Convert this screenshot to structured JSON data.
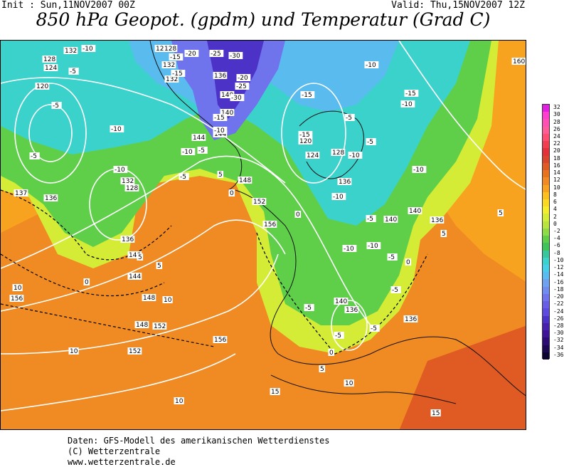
{
  "header": {
    "init": "Init : Sun,11NOV2007 00Z",
    "valid": "Valid: Thu,15NOV2007 12Z",
    "title": "850 hPa Geopot. (gpdm) und Temperatur (Grad C)"
  },
  "legend": {
    "labels": [
      "32",
      "30",
      "28",
      "26",
      "24",
      "22",
      "20",
      "18",
      "16",
      "14",
      "12",
      "10",
      "8",
      "6",
      "4",
      "2",
      "0",
      "-2",
      "-4",
      "-6",
      "-8",
      "-10",
      "-12",
      "-14",
      "-16",
      "-18",
      "-20",
      "-22",
      "-24",
      "-26",
      "-28",
      "-30",
      "-32",
      "-34",
      "-36"
    ],
    "colors": [
      "#e21ee0",
      "#ff3ed0",
      "#ff4fb4",
      "#ff5b96",
      "#ff4c73",
      "#f23c50",
      "#e3303a",
      "#d9442c",
      "#e05a23",
      "#e8721e",
      "#f08a22",
      "#f7a31f",
      "#fbbf1e",
      "#fbd923",
      "#f5ec2c",
      "#d5ec37",
      "#b7e43e",
      "#8edb47",
      "#5fcf4a",
      "#3fc45a",
      "#38c79c",
      "#3cd2cc",
      "#46cfe8",
      "#5abbef",
      "#6ea2ee",
      "#6f8df0",
      "#6f74ec",
      "#685ee6",
      "#5d4be0",
      "#4c32c7",
      "#4521ae",
      "#3e1399",
      "#2c0b75",
      "#1c0753",
      "#0e0430"
    ]
  },
  "map": {
    "geopotential_labels": [
      "132",
      "128",
      "124",
      "120",
      "137",
      "136",
      "128",
      "132",
      "136",
      "140",
      "144",
      "148",
      "152",
      "156",
      "160",
      "140",
      "144",
      "144",
      "148",
      "152",
      "156",
      "128",
      "132",
      "120",
      "124",
      "128",
      "136",
      "140",
      "140",
      "136",
      "140",
      "136",
      "156",
      "152",
      "148",
      "156",
      "128",
      "132",
      "136",
      "140",
      "136"
    ],
    "temperature_labels": [
      "-10",
      "-5",
      "-5",
      "-5",
      "-10",
      "-10",
      "-15",
      "-20",
      "-25",
      "-30",
      "-15",
      "-20",
      "-25",
      "-30",
      "-15",
      "-10",
      "-5",
      "-15",
      "-10",
      "-5",
      "-10",
      "-15",
      "-10",
      "-5",
      "-10",
      "-5",
      "0",
      "0",
      "5",
      "0",
      "5",
      "5",
      "10",
      "10",
      "10",
      "10",
      "15",
      "15",
      "10",
      "5",
      "0",
      "-5",
      "-5",
      "-5",
      "-15",
      "-10",
      "-10",
      "-5",
      "5",
      "5",
      "0",
      "-5",
      "-10",
      "-10",
      "-5"
    ]
  },
  "footer": {
    "line1": "Daten: GFS-Modell des amerikanischen Wetterdienstes",
    "line2": "(C) Wetterzentrale",
    "line3": "www.wetterzentrale.de"
  }
}
